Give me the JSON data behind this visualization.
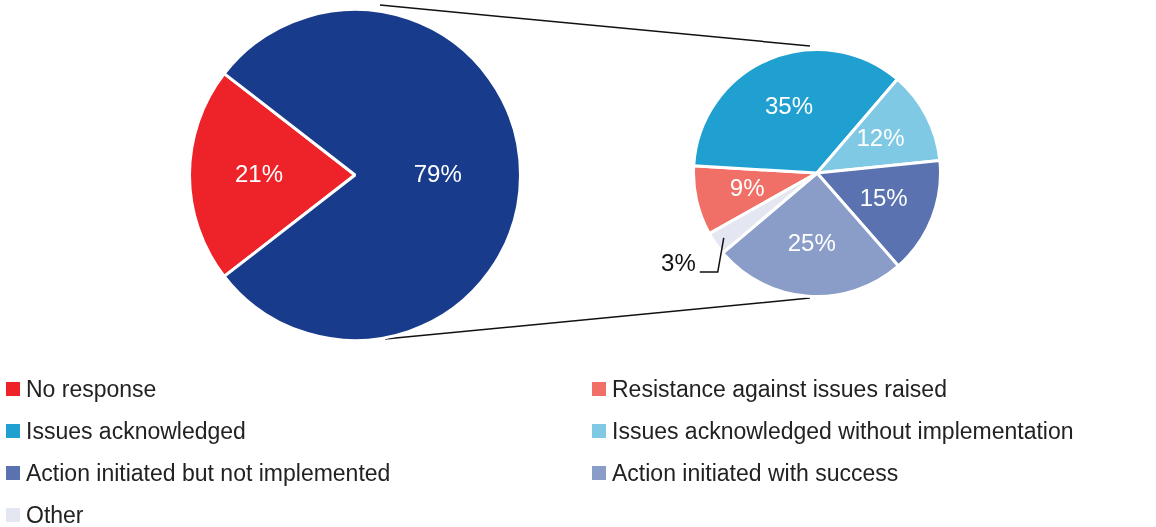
{
  "chart_data": [
    {
      "type": "pie",
      "categories": [
        "No response",
        null
      ],
      "values": [
        21,
        79
      ],
      "colors": [
        "#ee2229",
        "#183b8c"
      ],
      "value_labels": [
        "21%",
        "79%"
      ],
      "legend": "bottom"
    },
    {
      "type": "pie",
      "categories": [
        "Resistance against issues raised",
        "Issues acknowledged",
        "Issues acknowledged without implementation",
        "Action initiated but not implemented",
        "Action initiated with success",
        "Other"
      ],
      "values": [
        9,
        35,
        12,
        15,
        25,
        3
      ],
      "colors": [
        "#f07068",
        "#1fa0d0",
        "#7fc9e4",
        "#5a72b0",
        "#8a9cc8",
        "#e4e6f2"
      ],
      "value_labels": [
        "9%",
        "35%",
        "12%",
        "15%",
        "25%",
        "3%"
      ],
      "legend": "bottom"
    }
  ]
}
